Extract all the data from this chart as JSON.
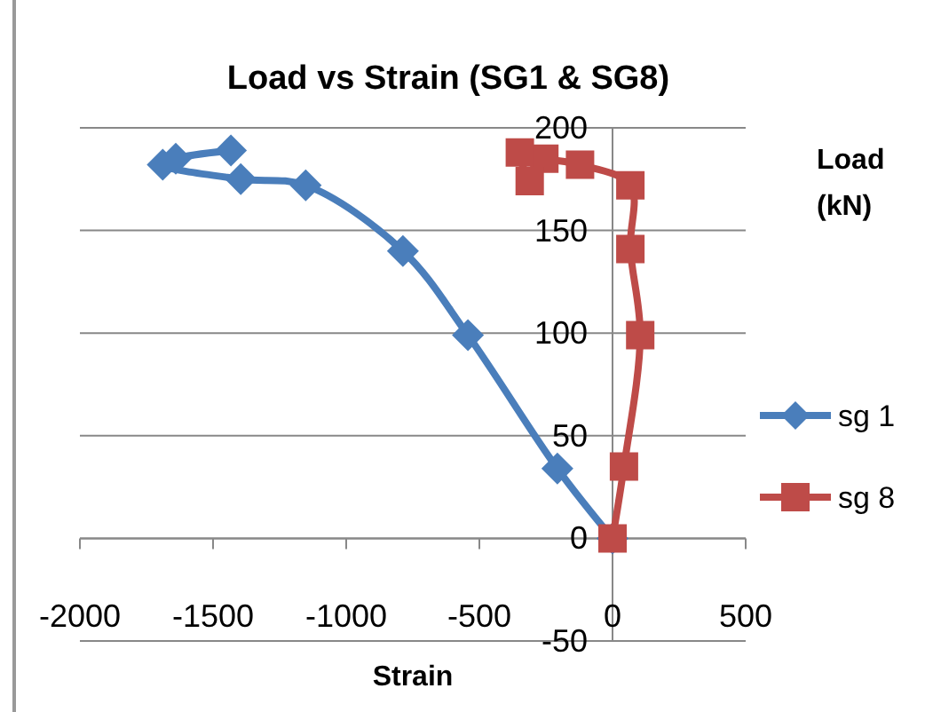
{
  "chart_data": {
    "type": "line",
    "title": "Load vs Strain (SG1 & SG8)",
    "xlabel": "Strain",
    "ylabel": "Load (kN)",
    "xlim": [
      -2000,
      500
    ],
    "xticks": [
      -2000,
      -1500,
      -1000,
      -500,
      0,
      500
    ],
    "ylim": [
      -50,
      200
    ],
    "yticks": [
      -50,
      0,
      50,
      100,
      150,
      200
    ],
    "grid": "y",
    "legend": "right",
    "series": [
      {
        "name": "sg 1",
        "color": "#4a7ebb",
        "marker": "diamond",
        "x": [
          0,
          -207,
          -543,
          -787,
          -1152,
          -1396,
          -1689,
          -1640,
          -1433
        ],
        "values": [
          0,
          34,
          99,
          140,
          172,
          175,
          182,
          185,
          189
        ]
      },
      {
        "name": "sg 8",
        "color": "#be4b48",
        "marker": "square",
        "x": [
          0,
          43,
          104,
          67,
          67,
          -122,
          -256,
          -348,
          -311
        ],
        "values": [
          0,
          35,
          99,
          141,
          172,
          182,
          185,
          188,
          174
        ]
      }
    ]
  }
}
